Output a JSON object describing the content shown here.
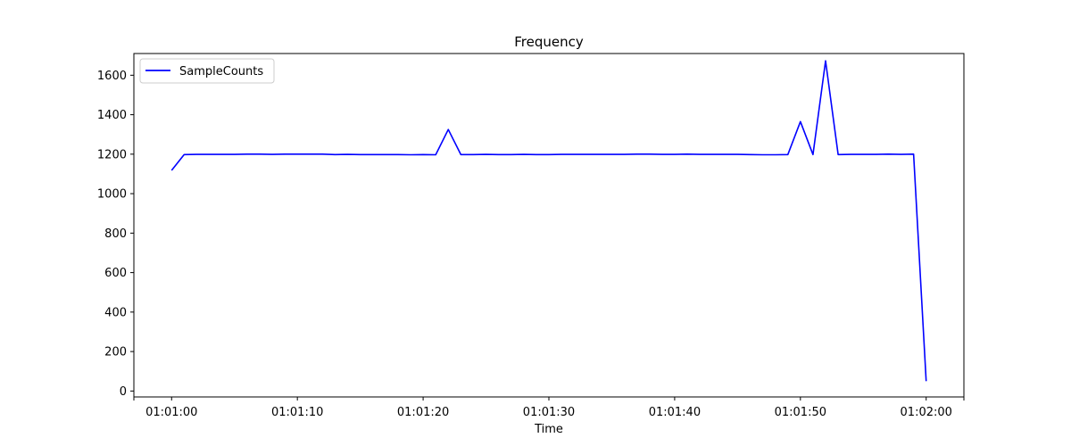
{
  "chart_data": {
    "type": "line",
    "title": "Frequency",
    "xlabel": "Time",
    "ylabel": "",
    "x_tick_labels": [
      "01:01:00",
      "01:01:10",
      "01:01:20",
      "01:01:30",
      "01:01:40",
      "01:01:50",
      "01:02:00"
    ],
    "y_ticks": [
      0,
      200,
      400,
      600,
      800,
      1000,
      1200,
      1400,
      1600
    ],
    "xlim": [
      "01:00:57",
      "01:02:03"
    ],
    "ylim": [
      -30,
      1710
    ],
    "grid": false,
    "legend_position": "top-left",
    "series": [
      {
        "name": "SampleCounts",
        "color": "#0000ff",
        "x": [
          "01:01:00",
          "01:01:01",
          "01:01:02",
          "01:01:03",
          "01:01:04",
          "01:01:05",
          "01:01:06",
          "01:01:07",
          "01:01:08",
          "01:01:09",
          "01:01:10",
          "01:01:11",
          "01:01:12",
          "01:01:13",
          "01:01:14",
          "01:01:15",
          "01:01:16",
          "01:01:17",
          "01:01:18",
          "01:01:19",
          "01:01:20",
          "01:01:21",
          "01:01:22",
          "01:01:23",
          "01:01:24",
          "01:01:25",
          "01:01:26",
          "01:01:27",
          "01:01:28",
          "01:01:29",
          "01:01:30",
          "01:01:31",
          "01:01:32",
          "01:01:33",
          "01:01:34",
          "01:01:35",
          "01:01:36",
          "01:01:37",
          "01:01:38",
          "01:01:39",
          "01:01:40",
          "01:01:41",
          "01:01:42",
          "01:01:43",
          "01:01:44",
          "01:01:45",
          "01:01:46",
          "01:01:47",
          "01:01:48",
          "01:01:49",
          "01:01:50",
          "01:01:51",
          "01:01:52",
          "01:01:53",
          "01:01:54",
          "01:01:55",
          "01:01:56",
          "01:01:57",
          "01:01:58",
          "01:01:59",
          "01:02:00"
        ],
        "values": [
          1118,
          1198,
          1199,
          1199,
          1199,
          1199,
          1200,
          1200,
          1199,
          1200,
          1200,
          1200,
          1200,
          1198,
          1199,
          1198,
          1198,
          1198,
          1198,
          1197,
          1198,
          1197,
          1325,
          1198,
          1198,
          1199,
          1198,
          1198,
          1199,
          1198,
          1198,
          1199,
          1199,
          1199,
          1199,
          1199,
          1199,
          1200,
          1200,
          1199,
          1199,
          1200,
          1199,
          1199,
          1199,
          1199,
          1198,
          1197,
          1197,
          1198,
          1365,
          1198,
          1673,
          1198,
          1199,
          1199,
          1199,
          1200,
          1199,
          1200,
          50
        ]
      }
    ]
  }
}
